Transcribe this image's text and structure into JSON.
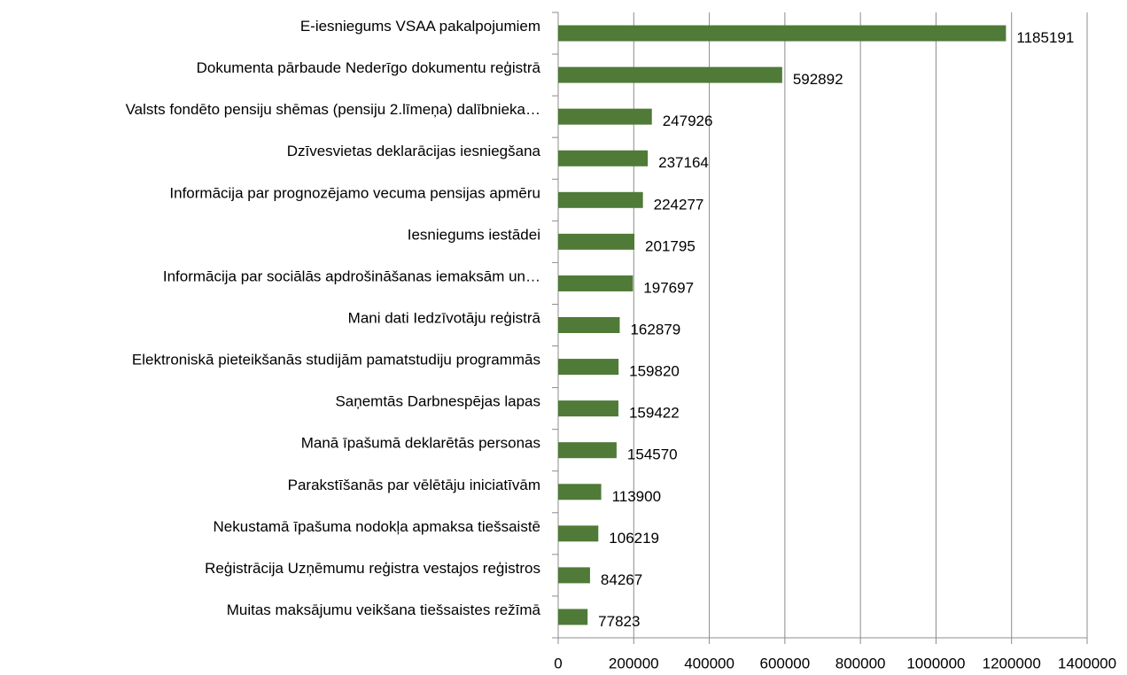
{
  "chart_data": {
    "type": "barh",
    "categories": [
      "E-iesniegums VSAA pakalpojumiem",
      "Dokumenta pārbaude Nederīgo dokumentu reģistrā",
      "Valsts fondēto pensiju shēmas (pensiju 2.līmeņa) dalībnieka…",
      "Dzīvesvietas deklarācijas iesniegšana",
      "Informācija par prognozējamo vecuma pensijas apmēru",
      "Iesniegums iestādei",
      "Informācija par sociālās apdrošināšanas iemaksām un…",
      "Mani dati Iedzīvotāju reģistrā",
      "Elektroniskā pieteikšanās studijām pamatstudiju programmās",
      "Saņemtās Darbnespējas lapas",
      "Manā īpašumā deklarētās personas",
      "Parakstīšanās par vēlētāju iniciatīvām",
      "Nekustamā īpašuma nodokļa apmaksa tiešsaistē",
      "Reģistrācija Uzņēmumu reģistra vestajos reģistros",
      "Muitas maksājumu veikšana tiešsaistes režīmā"
    ],
    "values": [
      1185191,
      592892,
      247926,
      237164,
      224277,
      201795,
      197697,
      162879,
      159820,
      159422,
      154570,
      113900,
      106219,
      84267,
      77823
    ],
    "color": "#4f7a37",
    "xlim": [
      0,
      1400000
    ],
    "xticks": [
      0,
      200000,
      400000,
      600000,
      800000,
      1000000,
      1200000,
      1400000
    ],
    "grid": true
  }
}
